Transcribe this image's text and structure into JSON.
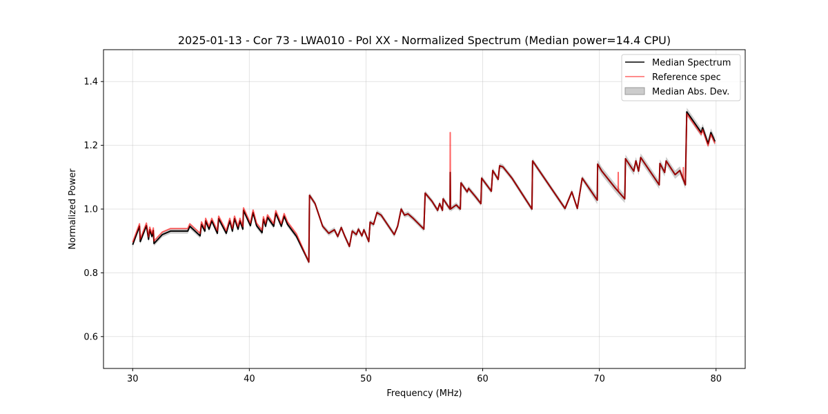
{
  "chart_data": {
    "type": "line",
    "title": "2025-01-13 - Cor 73 - LWA010 - Pol XX - Normalized Spectrum (Median power=14.4 CPU)",
    "xlabel": "Frequency (MHz)",
    "ylabel": "Normalized Power",
    "xlim": [
      27.5,
      82.5
    ],
    "ylim": [
      0.5,
      1.5
    ],
    "xticks": [
      30,
      40,
      50,
      60,
      70,
      80
    ],
    "yticks": [
      0.6,
      0.8,
      1.0,
      1.2,
      1.4
    ],
    "xtick_labels": [
      "30",
      "40",
      "50",
      "60",
      "70",
      "80"
    ],
    "ytick_labels": [
      "0.6",
      "0.8",
      "1.0",
      "1.2",
      "1.4"
    ],
    "grid": true,
    "legend_position": "top-right",
    "legend": [
      "Median Spectrum",
      "Reference spec",
      "Median Abs. Dev."
    ],
    "colors": {
      "median": "#000000",
      "reference": "#ff0000",
      "mad": "#999999",
      "overlap": "#8b0000"
    },
    "median_spectrum": [
      [
        30.0,
        0.888
      ],
      [
        30.59,
        0.946
      ],
      [
        30.65,
        0.898
      ],
      [
        31.18,
        0.948
      ],
      [
        31.36,
        0.905
      ],
      [
        31.47,
        0.935
      ],
      [
        31.65,
        0.914
      ],
      [
        31.77,
        0.933
      ],
      [
        31.83,
        0.892
      ],
      [
        32.54,
        0.92
      ],
      [
        33.24,
        0.931
      ],
      [
        34.72,
        0.931
      ],
      [
        34.9,
        0.946
      ],
      [
        35.78,
        0.916
      ],
      [
        35.9,
        0.952
      ],
      [
        36.19,
        0.931
      ],
      [
        36.25,
        0.963
      ],
      [
        36.55,
        0.937
      ],
      [
        36.78,
        0.963
      ],
      [
        37.26,
        0.924
      ],
      [
        37.37,
        0.97
      ],
      [
        38.02,
        0.924
      ],
      [
        38.32,
        0.963
      ],
      [
        38.55,
        0.931
      ],
      [
        38.73,
        0.97
      ],
      [
        39.03,
        0.937
      ],
      [
        39.2,
        0.963
      ],
      [
        39.44,
        0.937
      ],
      [
        39.5,
        0.996
      ],
      [
        40.09,
        0.948
      ],
      [
        40.32,
        0.989
      ],
      [
        40.62,
        0.948
      ],
      [
        41.09,
        0.926
      ],
      [
        41.21,
        0.968
      ],
      [
        41.39,
        0.946
      ],
      [
        41.56,
        0.974
      ],
      [
        42.09,
        0.946
      ],
      [
        42.27,
        0.987
      ],
      [
        42.74,
        0.946
      ],
      [
        42.98,
        0.978
      ],
      [
        43.27,
        0.952
      ],
      [
        44.04,
        0.914
      ],
      [
        45.1,
        0.834
      ],
      [
        45.16,
        1.043
      ],
      [
        45.63,
        1.017
      ],
      [
        46.28,
        0.946
      ],
      [
        46.81,
        0.924
      ],
      [
        47.29,
        0.935
      ],
      [
        47.58,
        0.914
      ],
      [
        47.88,
        0.942
      ],
      [
        48.17,
        0.916
      ],
      [
        48.58,
        0.883
      ],
      [
        48.82,
        0.931
      ],
      [
        49.17,
        0.92
      ],
      [
        49.35,
        0.937
      ],
      [
        49.65,
        0.916
      ],
      [
        49.82,
        0.935
      ],
      [
        50.24,
        0.898
      ],
      [
        50.35,
        0.959
      ],
      [
        50.65,
        0.952
      ],
      [
        50.94,
        0.989
      ],
      [
        51.3,
        0.981
      ],
      [
        52.42,
        0.92
      ],
      [
        52.71,
        0.946
      ],
      [
        53.01,
        1.0
      ],
      [
        53.3,
        0.981
      ],
      [
        53.6,
        0.985
      ],
      [
        54.07,
        0.97
      ],
      [
        54.96,
        0.937
      ],
      [
        55.07,
        1.05
      ],
      [
        55.66,
        1.024
      ],
      [
        56.14,
        0.996
      ],
      [
        56.31,
        1.017
      ],
      [
        56.55,
        0.996
      ],
      [
        56.61,
        1.032
      ],
      [
        57.2,
        1.0
      ],
      [
        57.22,
        1.115
      ],
      [
        57.24,
        1.0
      ],
      [
        57.73,
        1.013
      ],
      [
        58.08,
        1.0
      ],
      [
        58.14,
        1.082
      ],
      [
        58.67,
        1.054
      ],
      [
        58.79,
        1.065
      ],
      [
        59.38,
        1.039
      ],
      [
        59.85,
        1.017
      ],
      [
        59.91,
        1.097
      ],
      [
        60.74,
        1.056
      ],
      [
        60.86,
        1.121
      ],
      [
        61.33,
        1.093
      ],
      [
        61.45,
        1.136
      ],
      [
        61.74,
        1.132
      ],
      [
        62.51,
        1.097
      ],
      [
        64.22,
        1.0
      ],
      [
        64.28,
        1.151
      ],
      [
        67.05,
        1.002
      ],
      [
        67.64,
        1.054
      ],
      [
        68.11,
        1.002
      ],
      [
        68.53,
        1.097
      ],
      [
        69.82,
        1.028
      ],
      [
        69.85,
        1.141
      ],
      [
        70.21,
        1.119
      ],
      [
        71.39,
        1.065
      ],
      [
        72.18,
        1.032
      ],
      [
        72.24,
        1.158
      ],
      [
        72.95,
        1.119
      ],
      [
        73.13,
        1.151
      ],
      [
        73.36,
        1.119
      ],
      [
        73.54,
        1.162
      ],
      [
        75.13,
        1.076
      ],
      [
        75.19,
        1.143
      ],
      [
        75.6,
        1.115
      ],
      [
        75.72,
        1.151
      ],
      [
        76.49,
        1.108
      ],
      [
        76.9,
        1.121
      ],
      [
        77.37,
        1.076
      ],
      [
        77.49,
        1.305
      ],
      [
        78.73,
        1.24
      ],
      [
        78.85,
        1.255
      ],
      [
        79.32,
        1.205
      ],
      [
        79.56,
        1.24
      ],
      [
        79.91,
        1.212
      ]
    ],
    "reference_offset_below_45MHz": 0.008,
    "reference_offset_above_77MHz": -0.006,
    "reference_spikes": [
      [
        57.22,
        1.24
      ],
      [
        71.62,
        1.115
      ],
      [
        77.2,
        1.13
      ]
    ],
    "mad_halfwidth_low": 0.008,
    "mad_halfwidth_high": 0.013
  }
}
